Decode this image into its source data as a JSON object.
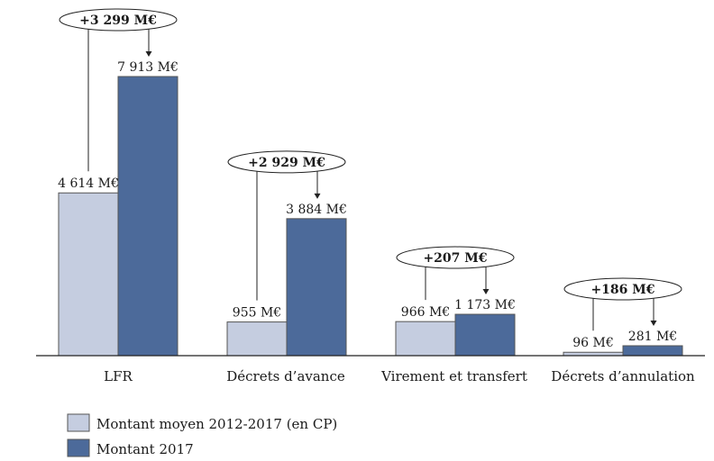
{
  "chart_data": {
    "type": "bar",
    "categories": [
      "LFR",
      "Décrets d’avance",
      "Virement et transfert",
      "Décrets d’annulation"
    ],
    "series": [
      {
        "name": "Montant moyen 2012-2017 (en CP)",
        "values": [
          4614,
          955,
          966,
          96
        ],
        "color": "#c5cde0",
        "labels": [
          "4 614 M€",
          "955 M€",
          "966 M€",
          "96 M€"
        ]
      },
      {
        "name": "Montant 2017",
        "values": [
          7913,
          3884,
          1173,
          281
        ],
        "color": "#4c6a9a",
        "labels": [
          "7 913 M€",
          "3 884 M€",
          "1 173 M€",
          "281 M€"
        ]
      }
    ],
    "differences": [
      "+3 299 M€",
      "+2 929 M€",
      "+207 M€",
      "+186 M€"
    ],
    "ylim": [
      0,
      7913
    ],
    "grid": false,
    "legend": "bottom-left",
    "unit": "M€"
  }
}
